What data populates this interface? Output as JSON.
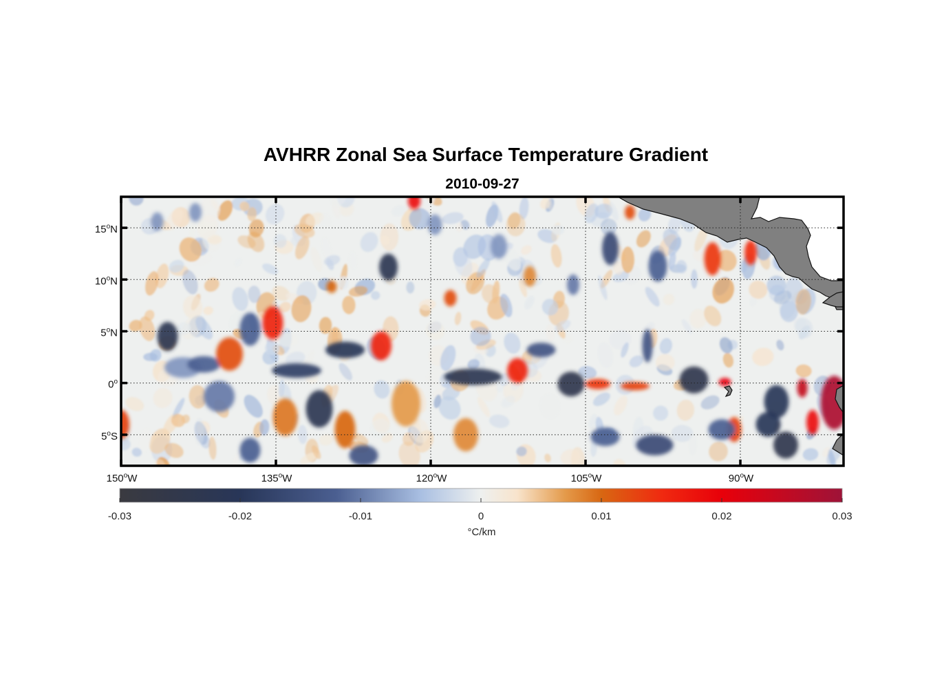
{
  "chart_data": {
    "type": "heatmap",
    "title": "AVHRR Zonal Sea Surface Temperature Gradient",
    "subtitle": "2010-09-27",
    "map_extent": {
      "lon_range": [
        -150,
        -80
      ],
      "lat_range": [
        -8,
        18
      ]
    },
    "x_ticks": [
      {
        "value": -150,
        "num": "150",
        "hemi": "W"
      },
      {
        "value": -135,
        "num": "135",
        "hemi": "W"
      },
      {
        "value": -120,
        "num": "120",
        "hemi": "W"
      },
      {
        "value": -105,
        "num": "105",
        "hemi": "W"
      },
      {
        "value": -90,
        "num": "90",
        "hemi": "W"
      }
    ],
    "y_ticks": [
      {
        "value": 15,
        "num": "15",
        "hemi": "N"
      },
      {
        "value": 10,
        "num": "10",
        "hemi": "N"
      },
      {
        "value": 5,
        "num": "5",
        "hemi": "N"
      },
      {
        "value": 0,
        "num": "0",
        "hemi": ""
      },
      {
        "value": -5,
        "num": "5",
        "hemi": "S"
      }
    ],
    "grid": true,
    "colorbar": {
      "range": [
        -0.03,
        0.03
      ],
      "ticks": [
        {
          "value": -0.03,
          "label": "-0.03"
        },
        {
          "value": -0.02,
          "label": "-0.02"
        },
        {
          "value": -0.01,
          "label": "-0.01"
        },
        {
          "value": 0,
          "label": "0"
        },
        {
          "value": 0.01,
          "label": "0.01"
        },
        {
          "value": 0.02,
          "label": "0.02"
        },
        {
          "value": 0.03,
          "label": "0.03"
        }
      ],
      "label": "°C/km",
      "colors": [
        {
          "v": -0.03,
          "c": "#3a3a40"
        },
        {
          "v": -0.02,
          "c": "#283658"
        },
        {
          "v": -0.012,
          "c": "#4b5f91"
        },
        {
          "v": -0.005,
          "c": "#a9bfe2"
        },
        {
          "v": 0,
          "c": "#eef0ef"
        },
        {
          "v": 0.003,
          "c": "#f8e4cc"
        },
        {
          "v": 0.007,
          "c": "#e49a4a"
        },
        {
          "v": 0.01,
          "c": "#d86712"
        },
        {
          "v": 0.015,
          "c": "#f02a10"
        },
        {
          "v": 0.02,
          "c": "#e8000a"
        },
        {
          "v": 0.03,
          "c": "#9e1338"
        }
      ]
    },
    "features": [
      {
        "lon": -145.5,
        "lat": 4.5,
        "val": -0.022,
        "rx": 1.0,
        "ry": 1.4
      },
      {
        "lon": -144,
        "lat": 1.5,
        "val": -0.008,
        "rx": 1.8,
        "ry": 1.0
      },
      {
        "lon": -142,
        "lat": 1.8,
        "val": -0.012,
        "rx": 1.6,
        "ry": 0.8
      },
      {
        "lon": -140.5,
        "lat": -1.3,
        "val": -0.01,
        "rx": 1.5,
        "ry": 1.5
      },
      {
        "lon": -139.5,
        "lat": 2.8,
        "val": 0.012,
        "rx": 1.3,
        "ry": 1.6
      },
      {
        "lon": -137.5,
        "lat": 5.2,
        "val": -0.012,
        "rx": 1.0,
        "ry": 1.6
      },
      {
        "lon": -135.3,
        "lat": 5.8,
        "val": 0.016,
        "rx": 1.0,
        "ry": 1.6
      },
      {
        "lon": -133,
        "lat": 1.2,
        "val": -0.018,
        "rx": 2.4,
        "ry": 0.7
      },
      {
        "lon": -128.3,
        "lat": 3.2,
        "val": -0.02,
        "rx": 1.9,
        "ry": 0.8
      },
      {
        "lon": -124.8,
        "lat": 3.6,
        "val": 0.016,
        "rx": 1.0,
        "ry": 1.4
      },
      {
        "lon": -124.1,
        "lat": 11.2,
        "val": -0.022,
        "rx": 0.9,
        "ry": 1.3
      },
      {
        "lon": -130.8,
        "lat": -2.5,
        "val": -0.022,
        "rx": 1.3,
        "ry": 1.8
      },
      {
        "lon": -134.1,
        "lat": -3.3,
        "val": 0.009,
        "rx": 1.2,
        "ry": 1.8
      },
      {
        "lon": -128.3,
        "lat": -4.5,
        "val": 0.01,
        "rx": 1.0,
        "ry": 1.8
      },
      {
        "lon": -126.5,
        "lat": -7.0,
        "val": -0.014,
        "rx": 1.4,
        "ry": 1.0
      },
      {
        "lon": -121.6,
        "lat": 17.6,
        "val": 0.018,
        "rx": 0.6,
        "ry": 0.8
      },
      {
        "lon": -118.1,
        "lat": 8.2,
        "val": 0.012,
        "rx": 0.6,
        "ry": 0.8
      },
      {
        "lon": -115.9,
        "lat": 0.6,
        "val": -0.022,
        "rx": 2.8,
        "ry": 0.8
      },
      {
        "lon": -111.6,
        "lat": 1.2,
        "val": 0.016,
        "rx": 1.0,
        "ry": 1.2
      },
      {
        "lon": -109.3,
        "lat": 3.2,
        "val": -0.014,
        "rx": 1.4,
        "ry": 0.7
      },
      {
        "lon": -106.4,
        "lat": -0.1,
        "val": -0.024,
        "rx": 1.3,
        "ry": 1.2
      },
      {
        "lon": -103.8,
        "lat": -0.1,
        "val": 0.014,
        "rx": 1.2,
        "ry": 0.5
      },
      {
        "lon": -100.2,
        "lat": -0.3,
        "val": 0.013,
        "rx": 1.4,
        "ry": 0.4
      },
      {
        "lon": -94.5,
        "lat": 0.3,
        "val": -0.024,
        "rx": 1.4,
        "ry": 1.3
      },
      {
        "lon": -91.5,
        "lat": 0.1,
        "val": 0.02,
        "rx": 0.6,
        "ry": 0.4
      },
      {
        "lon": -86.5,
        "lat": -1.8,
        "val": -0.02,
        "rx": 1.2,
        "ry": 1.6
      },
      {
        "lon": -84.0,
        "lat": -0.5,
        "val": 0.025,
        "rx": 0.5,
        "ry": 0.9
      },
      {
        "lon": -83.0,
        "lat": -3.8,
        "val": 0.018,
        "rx": 0.6,
        "ry": 1.2
      },
      {
        "lon": -80.9,
        "lat": -1.9,
        "val": 0.028,
        "rx": 1.3,
        "ry": 2.6
      },
      {
        "lon": -85.6,
        "lat": -6.0,
        "val": -0.024,
        "rx": 1.2,
        "ry": 1.3
      },
      {
        "lon": -87.3,
        "lat": -4.0,
        "val": -0.02,
        "rx": 1.2,
        "ry": 1.2
      },
      {
        "lon": -90.6,
        "lat": -4.5,
        "val": 0.013,
        "rx": 0.7,
        "ry": 1.2
      },
      {
        "lon": -92.7,
        "lat": 12.0,
        "val": 0.014,
        "rx": 0.8,
        "ry": 1.6
      },
      {
        "lon": -89.0,
        "lat": 12.6,
        "val": 0.015,
        "rx": 0.6,
        "ry": 1.2
      },
      {
        "lon": -102.6,
        "lat": 13.0,
        "val": -0.016,
        "rx": 0.8,
        "ry": 1.6
      },
      {
        "lon": -98.0,
        "lat": 11.3,
        "val": -0.012,
        "rx": 0.9,
        "ry": 1.5
      },
      {
        "lon": -100.7,
        "lat": 16.5,
        "val": 0.012,
        "rx": 0.5,
        "ry": 0.7
      },
      {
        "lon": -99.0,
        "lat": 3.6,
        "val": -0.014,
        "rx": 0.5,
        "ry": 1.6
      },
      {
        "lon": -103.1,
        "lat": -5.2,
        "val": -0.012,
        "rx": 1.4,
        "ry": 0.9
      },
      {
        "lon": -98.3,
        "lat": -6.0,
        "val": -0.016,
        "rx": 1.8,
        "ry": 1.0
      },
      {
        "lon": -91.8,
        "lat": -4.5,
        "val": -0.012,
        "rx": 1.3,
        "ry": 1.0
      },
      {
        "lon": -113.4,
        "lat": 13.2,
        "val": -0.008,
        "rx": 0.8,
        "ry": 1.2
      },
      {
        "lon": -116.6,
        "lat": -5.0,
        "val": 0.008,
        "rx": 1.2,
        "ry": 1.6
      },
      {
        "lon": -122.4,
        "lat": -2.0,
        "val": 0.007,
        "rx": 1.4,
        "ry": 2.2
      },
      {
        "lon": -150,
        "lat": -4.0,
        "val": 0.013,
        "rx": 0.8,
        "ry": 1.4
      },
      {
        "lon": -146.5,
        "lat": 15.6,
        "val": -0.008,
        "rx": 0.6,
        "ry": 0.9
      },
      {
        "lon": -142.8,
        "lat": 16.5,
        "val": -0.008,
        "rx": 0.6,
        "ry": 0.9
      },
      {
        "lon": -129.6,
        "lat": 9.3,
        "val": 0.01,
        "rx": 0.5,
        "ry": 0.6
      },
      {
        "lon": -119.6,
        "lat": 15.3,
        "val": -0.008,
        "rx": 0.7,
        "ry": 1.0
      },
      {
        "lon": -110.4,
        "lat": 10.3,
        "val": 0.008,
        "rx": 0.6,
        "ry": 1.0
      },
      {
        "lon": -106.2,
        "lat": 9.5,
        "val": -0.01,
        "rx": 0.6,
        "ry": 1.0
      },
      {
        "lon": -137.5,
        "lat": -6.5,
        "val": -0.012,
        "rx": 1.0,
        "ry": 1.2
      }
    ]
  }
}
